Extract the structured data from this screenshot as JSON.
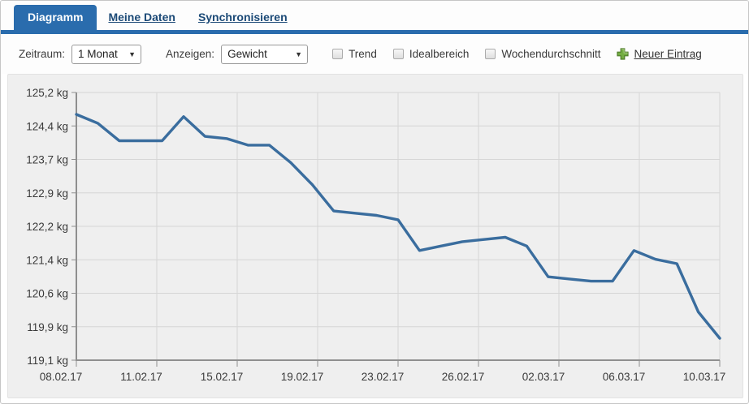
{
  "tabs": {
    "items": [
      {
        "label": "Diagramm",
        "active": true
      },
      {
        "label": "Meine Daten",
        "active": false
      },
      {
        "label": "Synchronisieren",
        "active": false
      }
    ],
    "accent_color": "#2a6cad"
  },
  "toolbar": {
    "zeitraum_label": "Zeitraum:",
    "zeitraum_value": "1 Monat",
    "anzeigen_label": "Anzeigen:",
    "anzeigen_value": "Gewicht",
    "checkboxes": [
      {
        "label": "Trend",
        "checked": false
      },
      {
        "label": "Idealbereich",
        "checked": false
      },
      {
        "label": "Wochendurchschnitt",
        "checked": false
      }
    ],
    "new_entry_label": "Neuer Eintrag",
    "plus_icon_color": "#74ad43"
  },
  "chart_data": {
    "type": "line",
    "series_name": "Gewicht",
    "unit": "kg",
    "x": [
      "08.02.17",
      "09.02.17",
      "10.02.17",
      "11.02.17",
      "12.02.17",
      "13.02.17",
      "14.02.17",
      "15.02.17",
      "16.02.17",
      "17.02.17",
      "18.02.17",
      "19.02.17",
      "20.02.17",
      "21.02.17",
      "22.02.17",
      "23.02.17",
      "24.02.17",
      "25.02.17",
      "26.02.17",
      "27.02.17",
      "28.02.17",
      "01.03.17",
      "02.03.17",
      "03.03.17",
      "04.03.17",
      "05.03.17",
      "06.03.17",
      "07.03.17",
      "08.03.17",
      "09.03.17",
      "10.03.17"
    ],
    "values": [
      124.7,
      124.5,
      124.1,
      124.1,
      124.1,
      124.65,
      124.2,
      124.15,
      124.0,
      124.0,
      123.6,
      123.1,
      122.5,
      122.45,
      122.4,
      122.3,
      121.6,
      121.7,
      121.8,
      121.85,
      121.9,
      121.7,
      121.0,
      120.95,
      120.9,
      120.9,
      121.6,
      121.4,
      121.3,
      120.2,
      119.6
    ],
    "y_ticks": [
      "125,2 kg",
      "124,4 kg",
      "123,7 kg",
      "122,9 kg",
      "122,2 kg",
      "121,4 kg",
      "120,6 kg",
      "119,9 kg",
      "119,1 kg"
    ],
    "x_ticks": [
      "08.02.17",
      "11.02.17",
      "15.02.17",
      "19.02.17",
      "23.02.17",
      "26.02.17",
      "02.03.17",
      "06.03.17",
      "10.03.17"
    ],
    "ylim": [
      119.1,
      125.2
    ],
    "grid": true,
    "line_color": "#3a6d9e",
    "grid_color": "#d6d6d6",
    "axis_color": "#8f8f8f",
    "label_color": "#3a3a3a",
    "bg_color": "#efefef"
  }
}
